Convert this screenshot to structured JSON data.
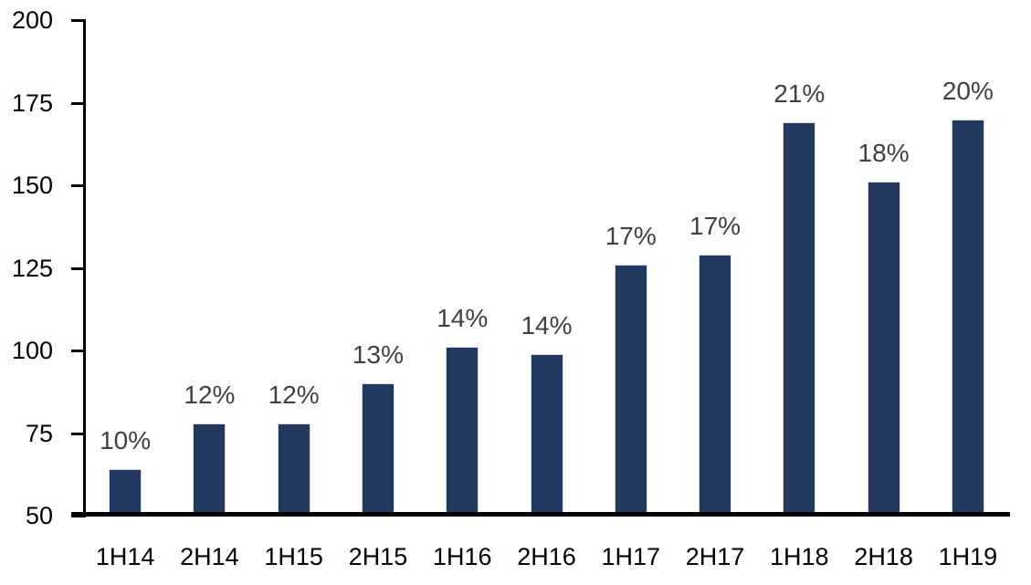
{
  "chart_data": {
    "type": "bar",
    "title": "",
    "xlabel": "",
    "ylabel": "",
    "categories": [
      "1H14",
      "2H14",
      "1H15",
      "2H15",
      "1H16",
      "2H16",
      "1H17",
      "2H17",
      "1H18",
      "2H18",
      "1H19"
    ],
    "values": [
      64,
      78,
      78,
      90,
      101,
      99,
      126,
      129,
      169,
      151,
      170
    ],
    "data_labels": [
      "10%",
      "12%",
      "12%",
      "13%",
      "14%",
      "14%",
      "17%",
      "17%",
      "21%",
      "18%",
      "20%"
    ],
    "ylim": [
      50,
      200
    ],
    "yticks": [
      50,
      75,
      100,
      125,
      150,
      175,
      200
    ],
    "grid": false,
    "legend": "none",
    "colors": {
      "bar": "#21395E",
      "bar_border": "#D5D9DF",
      "data_label": "#404040",
      "axis": "#000000",
      "tick_label": "#000000",
      "background": "#FFFFFF"
    }
  }
}
